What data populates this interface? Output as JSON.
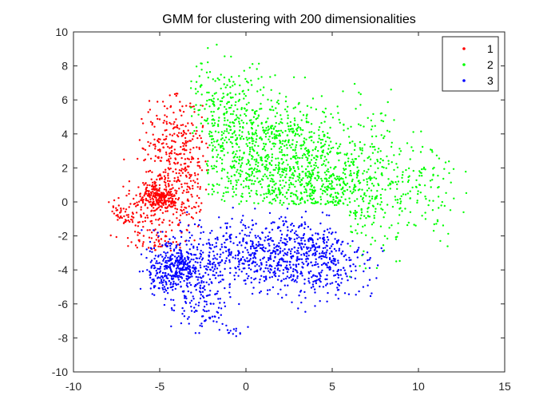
{
  "chart_data": {
    "type": "scatter",
    "title": "GMM for clustering with 200 dimensionalities",
    "xlabel": "",
    "ylabel": "",
    "xlim": [
      -10,
      15
    ],
    "ylim": [
      -10,
      10
    ],
    "xticks": [
      -10,
      -5,
      0,
      5,
      10,
      15
    ],
    "yticks": [
      -10,
      -8,
      -6,
      -4,
      -2,
      0,
      2,
      4,
      6,
      8,
      10
    ],
    "grid": false,
    "legend_position": "top-right",
    "series": [
      {
        "name": "1",
        "color": "#ff0000",
        "clusters": [
          {
            "cx": -4.9,
            "cy": 0.3,
            "sx": 0.55,
            "sy": 0.4,
            "n": 200
          },
          {
            "cx": -4.0,
            "cy": 2.8,
            "sx": 1.0,
            "sy": 2.0,
            "n": 350
          },
          {
            "cx": -5.5,
            "cy": -0.5,
            "sx": 1.3,
            "sy": 0.9,
            "n": 180
          },
          {
            "cx": -5.3,
            "cy": -2.4,
            "sx": 0.8,
            "sy": 0.3,
            "n": 40
          },
          {
            "cx": -7.2,
            "cy": -0.6,
            "sx": 0.35,
            "sy": 0.2,
            "n": 15
          }
        ],
        "bounds": {
          "xmin": -8.0,
          "xmax": -2.2,
          "ymin": -2.9,
          "ymax": 6.4
        },
        "approx_count": 785
      },
      {
        "name": "2",
        "color": "#00ff00",
        "clusters": [
          {
            "cx": 1.0,
            "cy": 3.2,
            "sx": 2.5,
            "sy": 1.5,
            "n": 700
          },
          {
            "cx": -1.5,
            "cy": 6.0,
            "sx": 1.5,
            "sy": 1.4,
            "n": 150
          },
          {
            "cx": 6.0,
            "cy": 1.0,
            "sx": 2.4,
            "sy": 2.0,
            "n": 450
          },
          {
            "cx": 10.5,
            "cy": 0.5,
            "sx": 1.5,
            "sy": 1.6,
            "n": 70
          },
          {
            "cx": 3.0,
            "cy": 0.6,
            "sx": 2.2,
            "sy": 1.0,
            "n": 250
          }
        ],
        "bounds": {
          "xmin": -3.2,
          "xmax": 12.8,
          "ymin": -4.5,
          "ymax": 10.0
        },
        "approx_count": 1620
      },
      {
        "name": "3",
        "color": "#0000ff",
        "clusters": [
          {
            "cx": -4.0,
            "cy": -4.0,
            "sx": 0.9,
            "sy": 0.8,
            "n": 400
          },
          {
            "cx": 0.5,
            "cy": -3.2,
            "sx": 2.4,
            "sy": 1.1,
            "n": 550
          },
          {
            "cx": 4.0,
            "cy": -3.3,
            "sx": 1.6,
            "sy": 1.1,
            "n": 350
          },
          {
            "cx": -2.5,
            "cy": -6.3,
            "sx": 0.8,
            "sy": 0.7,
            "n": 80
          },
          {
            "cx": -0.7,
            "cy": -7.6,
            "sx": 0.4,
            "sy": 0.3,
            "n": 15
          }
        ],
        "bounds": {
          "xmin": -6.5,
          "xmax": 8.0,
          "ymin": -8.0,
          "ymax": -0.1
        },
        "approx_count": 1395
      }
    ]
  }
}
